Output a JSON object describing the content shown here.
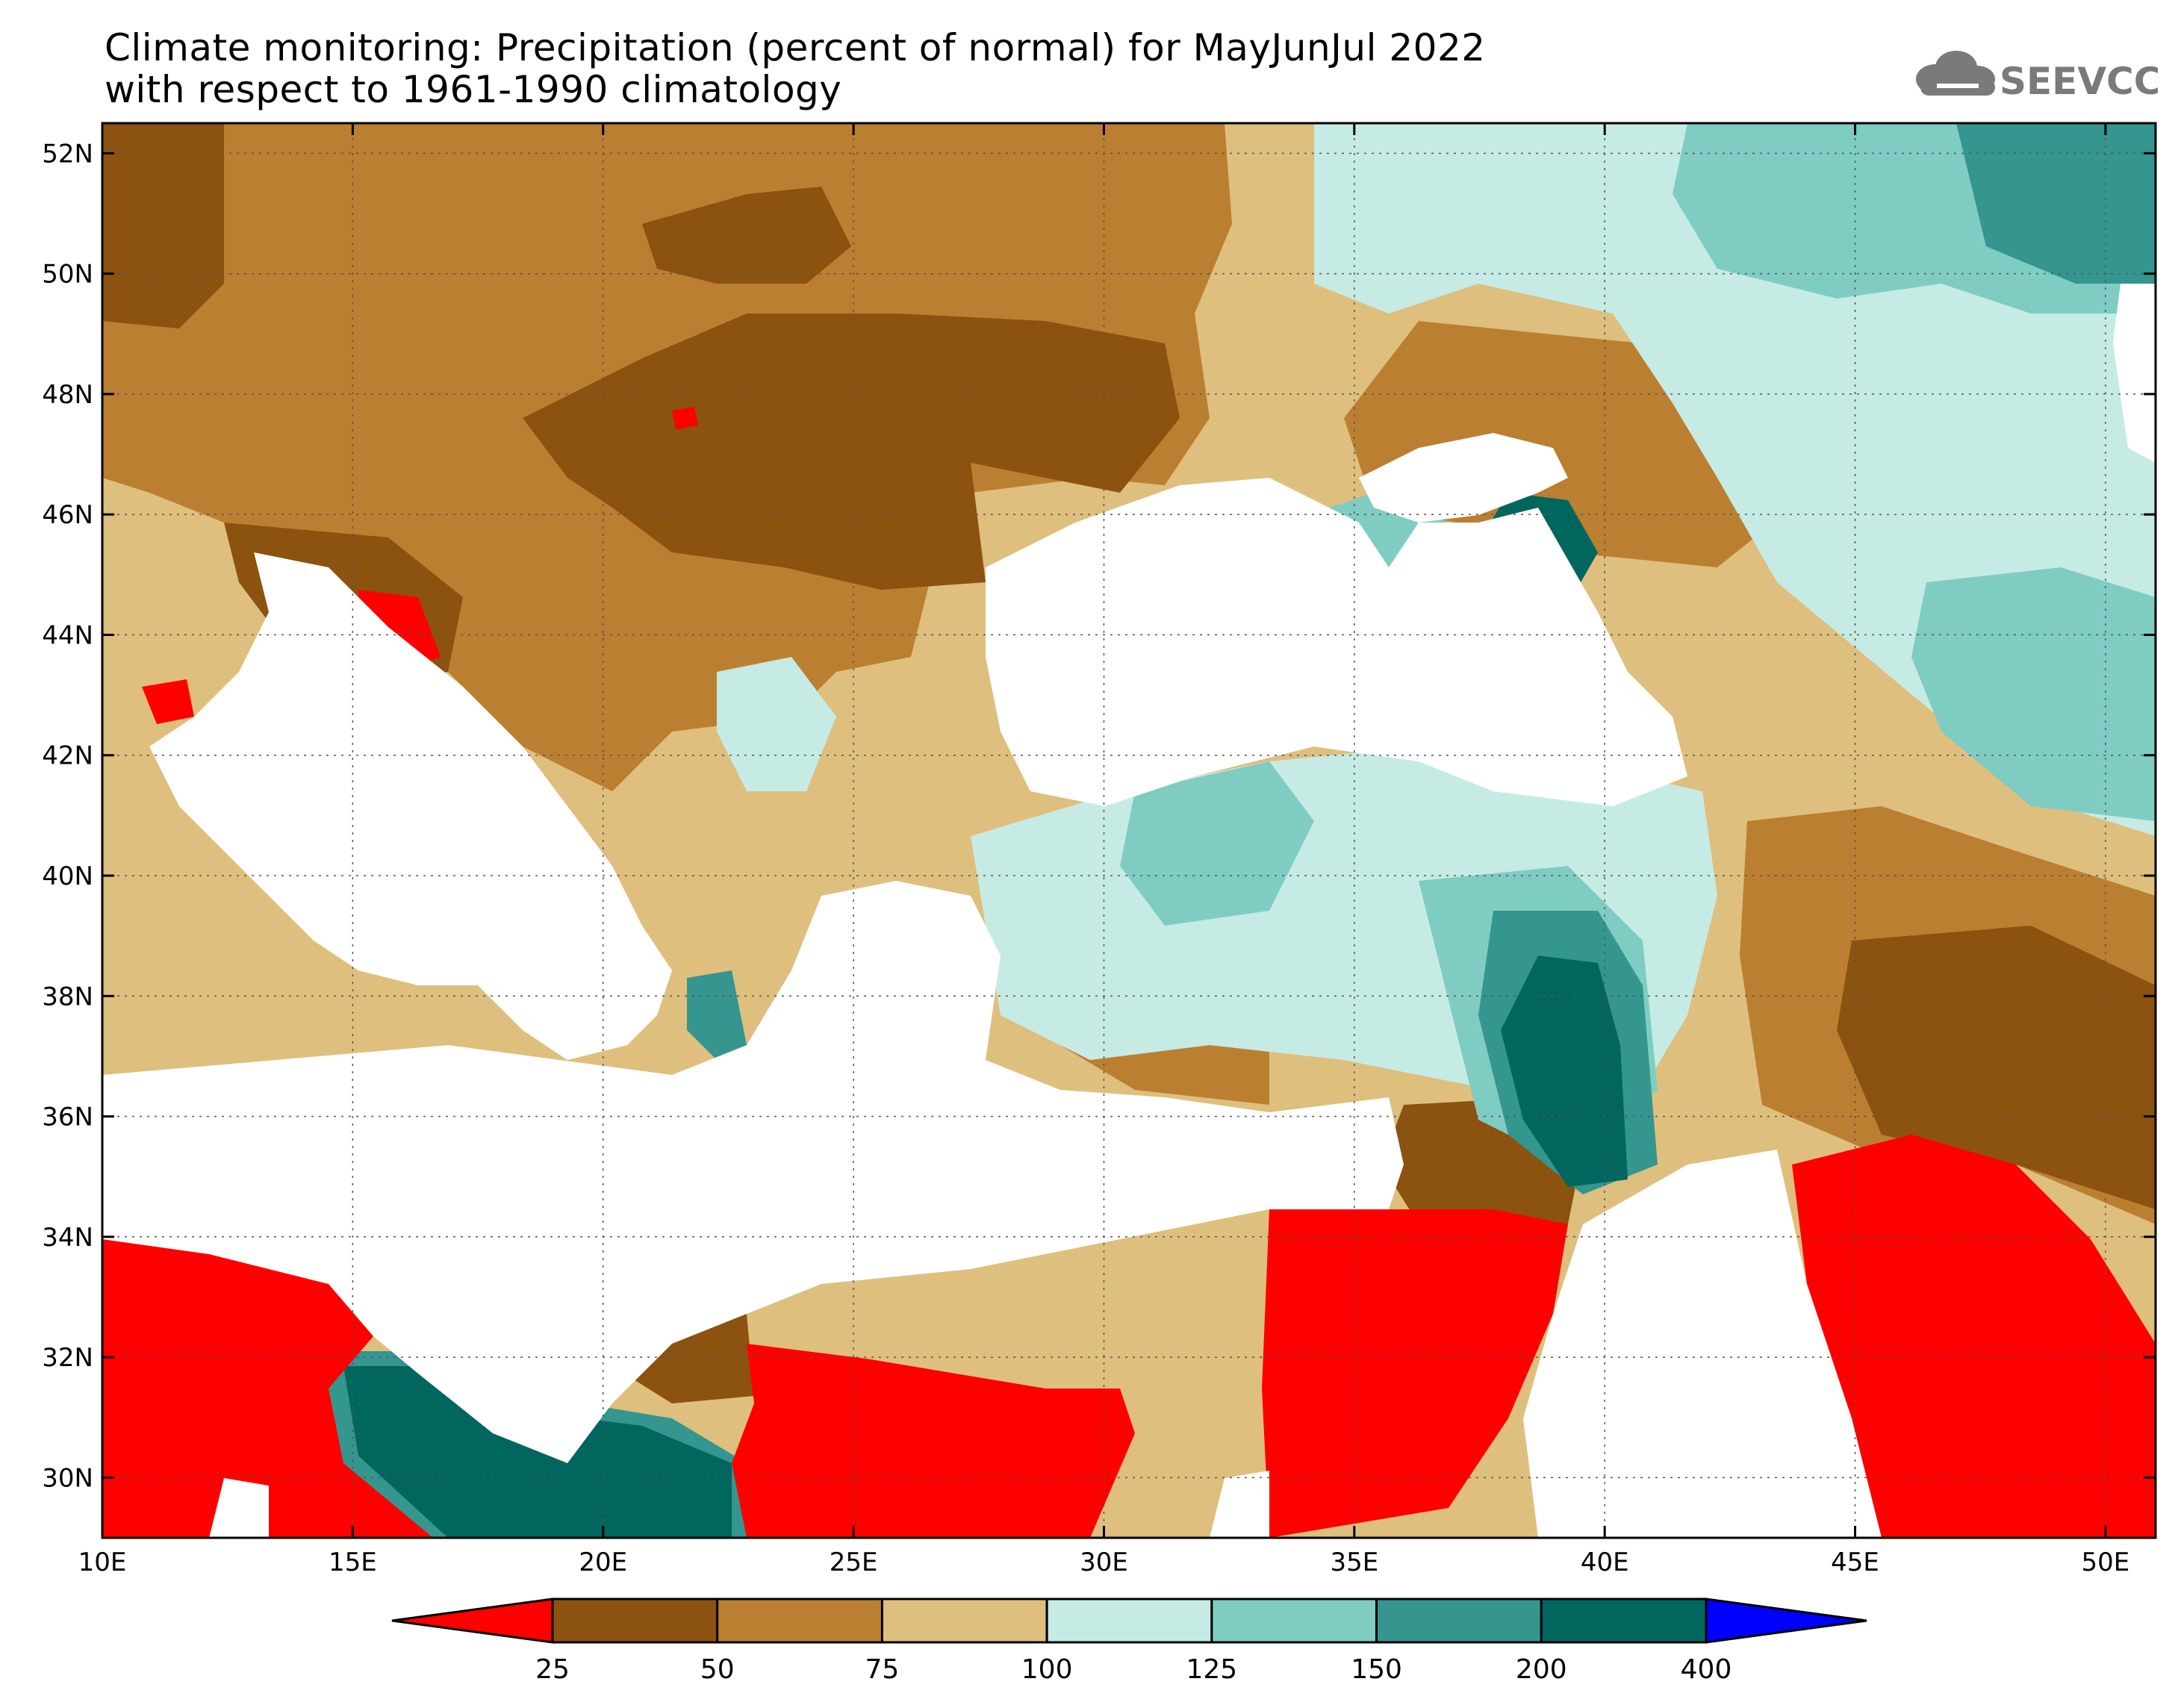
{
  "title": {
    "line1": "Climate monitoring: Precipitation (percent of normal) for MayJunJul 2022",
    "line2": "with respect to 1961-1990 climatology"
  },
  "logo": {
    "text": "SEEVCCC",
    "icon": "cloud-icon",
    "color": "#7a7a7a"
  },
  "map": {
    "lon_range": [
      10,
      51
    ],
    "lat_range": [
      29,
      52.5
    ],
    "lon_ticks": [
      {
        "value": 10,
        "label": "10E"
      },
      {
        "value": 15,
        "label": "15E"
      },
      {
        "value": 20,
        "label": "20E"
      },
      {
        "value": 25,
        "label": "25E"
      },
      {
        "value": 30,
        "label": "30E"
      },
      {
        "value": 35,
        "label": "35E"
      },
      {
        "value": 40,
        "label": "40E"
      },
      {
        "value": 45,
        "label": "45E"
      },
      {
        "value": 50,
        "label": "50E"
      }
    ],
    "lat_ticks": [
      {
        "value": 30,
        "label": "30N"
      },
      {
        "value": 32,
        "label": "32N"
      },
      {
        "value": 34,
        "label": "34N"
      },
      {
        "value": 36,
        "label": "36N"
      },
      {
        "value": 38,
        "label": "38N"
      },
      {
        "value": 40,
        "label": "40N"
      },
      {
        "value": 42,
        "label": "42N"
      },
      {
        "value": 44,
        "label": "44N"
      },
      {
        "value": 46,
        "label": "46N"
      },
      {
        "value": 48,
        "label": "48N"
      },
      {
        "value": 50,
        "label": "50N"
      },
      {
        "value": 52,
        "label": "52N"
      }
    ],
    "sea_color": "#ffffff"
  },
  "colorbar": {
    "levels": [
      "25",
      "50",
      "75",
      "100",
      "125",
      "150",
      "200",
      "400"
    ],
    "colors": [
      "#ff0000",
      "#8b5210",
      "#bb7f32",
      "#dfbf7e",
      "#c6ebe4",
      "#7fcdc2",
      "#35958f",
      "#00665e",
      "#0000ff"
    ]
  }
}
